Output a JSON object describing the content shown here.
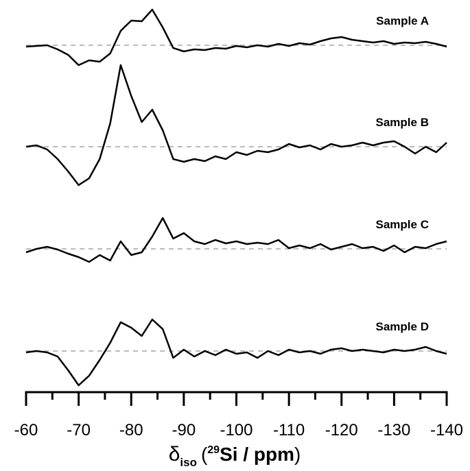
{
  "chart_data": {
    "type": "line",
    "x_label": {
      "symbol": "δ",
      "subscript": "iso",
      "open": "(",
      "superscript": "29",
      "main": "Si / ppm",
      "close": ")"
    },
    "x": [
      -60,
      -62,
      -64,
      -66,
      -68,
      -70,
      -72,
      -74,
      -76,
      -78,
      -80,
      -82,
      -84,
      -86,
      -88,
      -90,
      -92,
      -94,
      -96,
      -98,
      -100,
      -102,
      -104,
      -106,
      -108,
      -110,
      -112,
      -114,
      -116,
      -118,
      -120,
      -122,
      -124,
      -126,
      -128,
      -130,
      -132,
      -134,
      -136,
      -138,
      -140
    ],
    "xlim": [
      -60,
      -140
    ],
    "xticks": [
      -60,
      -70,
      -80,
      -90,
      -100,
      -110,
      -120,
      -130,
      -140
    ],
    "xminor_ticks": [
      -65,
      -75,
      -85,
      -95,
      -105,
      -115,
      -125,
      -135
    ],
    "baseline_color": "#bbbbbb",
    "series": [
      {
        "name": "Sample A",
        "color": "#000000",
        "values": [
          -2,
          -1,
          0,
          -6,
          -14,
          -29,
          -22,
          -24,
          -12,
          21,
          36,
          35,
          52,
          26,
          -4,
          -9,
          -6,
          -7,
          -4,
          -5,
          -1,
          -3,
          0,
          -2,
          2,
          -1,
          3,
          1,
          6,
          10,
          12,
          8,
          6,
          4,
          6,
          2,
          4,
          3,
          5,
          2,
          -2
        ]
      },
      {
        "name": "Sample B",
        "color": "#000000",
        "values": [
          0,
          2,
          -4,
          -18,
          -36,
          -56,
          -46,
          -18,
          34,
          119,
          74,
          36,
          54,
          24,
          -18,
          -22,
          -18,
          -21,
          -14,
          -18,
          -8,
          -12,
          -6,
          -8,
          -4,
          4,
          -1,
          2,
          -4,
          4,
          0,
          2,
          6,
          2,
          6,
          8,
          0,
          -10,
          0,
          -8,
          6
        ]
      },
      {
        "name": "Sample C",
        "color": "#000000",
        "values": [
          -5,
          0,
          3,
          -1,
          -7,
          -12,
          -19,
          -9,
          -17,
          11,
          -9,
          -5,
          18,
          45,
          15,
          23,
          11,
          7,
          13,
          8,
          11,
          7,
          9,
          7,
          13,
          1,
          5,
          1,
          7,
          -1,
          3,
          7,
          1,
          3,
          -3,
          5,
          -5,
          3,
          1,
          7,
          11
        ]
      },
      {
        "name": "Sample D",
        "color": "#000000",
        "values": [
          -2,
          0,
          -2,
          -8,
          -28,
          -50,
          -36,
          -13,
          12,
          42,
          34,
          22,
          46,
          32,
          -10,
          2,
          -8,
          0,
          -6,
          2,
          -4,
          -2,
          -10,
          0,
          -6,
          2,
          -2,
          0,
          -4,
          2,
          4,
          0,
          2,
          0,
          -2,
          2,
          0,
          2,
          6,
          0,
          -4
        ]
      }
    ]
  }
}
